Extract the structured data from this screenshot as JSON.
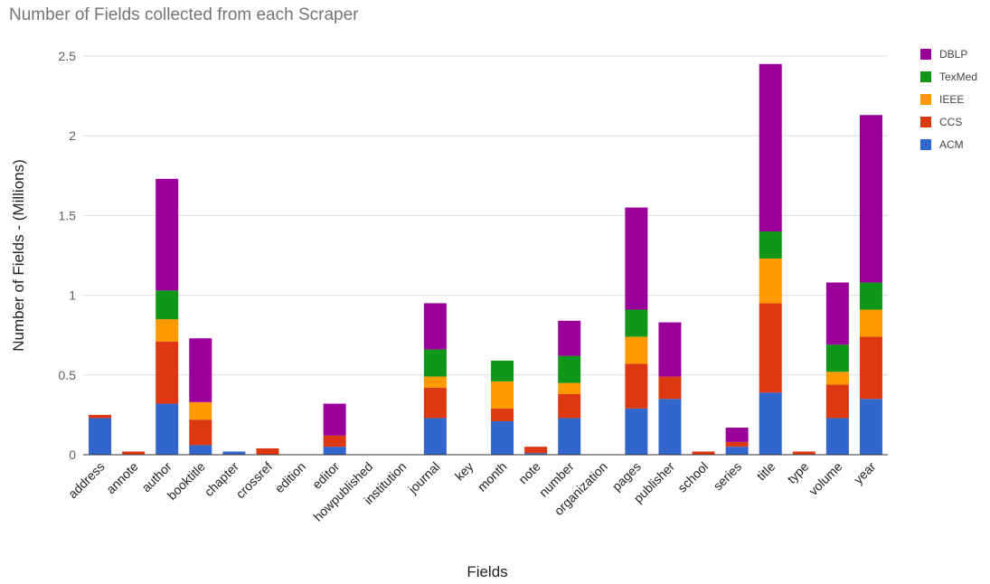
{
  "chart_data": {
    "type": "bar",
    "stacked": true,
    "title": "Number of Fields collected from each Scraper",
    "xlabel": "Fields",
    "ylabel": "Number of Fields - (Millions)",
    "ylim": [
      0,
      2.5
    ],
    "yticks": [
      0,
      0.5,
      1,
      1.5,
      2,
      2.5
    ],
    "ytick_labels": [
      "0",
      "0.5",
      "1",
      "1.5",
      "2",
      "2.5"
    ],
    "grid": true,
    "legend_position": "top-right",
    "categories": [
      "address",
      "annote",
      "author",
      "booktitle",
      "chapter",
      "crossref",
      "edition",
      "editor",
      "howpublished",
      "institution",
      "journal",
      "key",
      "month",
      "note",
      "number",
      "organization",
      "pages",
      "publisher",
      "school",
      "series",
      "title",
      "type",
      "volume",
      "year"
    ],
    "series": [
      {
        "name": "ACM",
        "color": "#3366cc",
        "values": [
          0.23,
          0,
          0.32,
          0.06,
          0.02,
          0,
          0,
          0.05,
          0,
          0,
          0.23,
          0,
          0.21,
          0.01,
          0.23,
          0,
          0.29,
          0.35,
          0,
          0.05,
          0.39,
          0,
          0.23,
          0.35
        ]
      },
      {
        "name": "CCS",
        "color": "#dc3912",
        "values": [
          0.02,
          0.02,
          0.39,
          0.16,
          0,
          0.04,
          0,
          0.07,
          0,
          0,
          0.19,
          0,
          0.08,
          0.04,
          0.15,
          0,
          0.28,
          0.14,
          0.02,
          0.03,
          0.56,
          0.02,
          0.21,
          0.39
        ]
      },
      {
        "name": "IEEE",
        "color": "#ff9900",
        "values": [
          0,
          0,
          0.14,
          0.11,
          0,
          0,
          0,
          0,
          0,
          0,
          0.07,
          0,
          0.17,
          0,
          0.07,
          0,
          0.17,
          0,
          0,
          0,
          0.28,
          0,
          0.08,
          0.17
        ]
      },
      {
        "name": "TexMed",
        "color": "#109618",
        "values": [
          0,
          0,
          0.18,
          0,
          0,
          0,
          0,
          0,
          0,
          0,
          0.17,
          0,
          0.13,
          0,
          0.17,
          0,
          0.17,
          0,
          0,
          0,
          0.17,
          0,
          0.17,
          0.17
        ]
      },
      {
        "name": "DBLP",
        "color": "#990099",
        "values": [
          0,
          0,
          0.7,
          0.4,
          0,
          0,
          0,
          0.2,
          0,
          0,
          0.29,
          0,
          0,
          0,
          0.22,
          0,
          0.64,
          0.34,
          0,
          0.09,
          1.05,
          0,
          0.39,
          1.05
        ]
      }
    ]
  }
}
